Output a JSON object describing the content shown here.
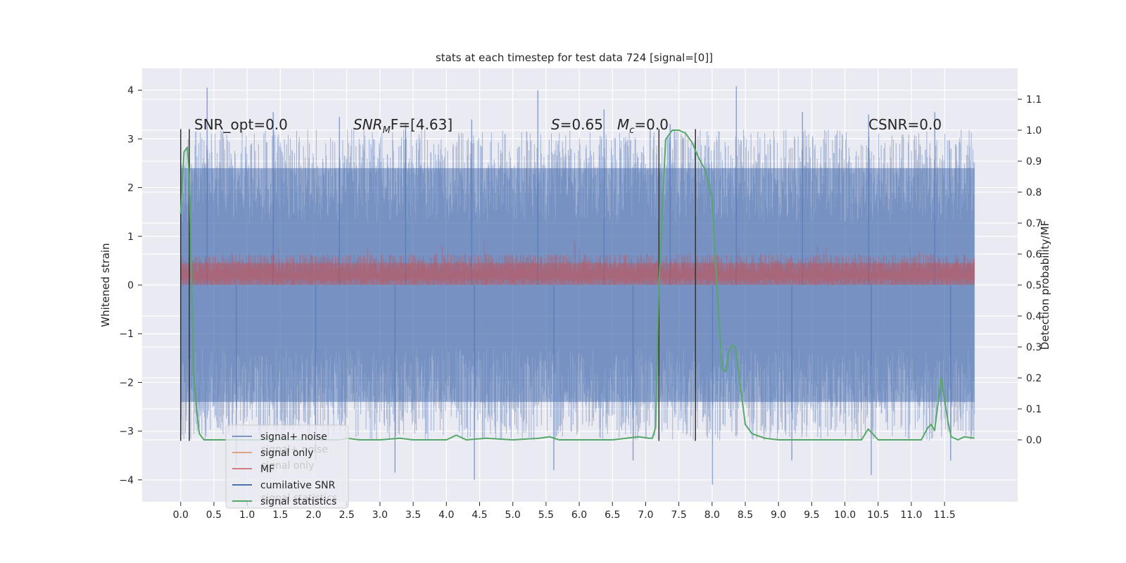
{
  "chart_data": {
    "type": "line",
    "title": "stats at each timestep for test data 724 [signal=[0]]",
    "xlabel": "",
    "ylabel_left": "Whitened strain",
    "ylabel_right": "Detection probability/MF",
    "xlim": [
      -0.58,
      12.6
    ],
    "ylim_left": [
      -4.45,
      4.45
    ],
    "ylim_right": [
      -0.2,
      1.2
    ],
    "grid": true,
    "x_ticks": [
      "0.0",
      "0.5",
      "1.0",
      "1.5",
      "2.0",
      "2.5",
      "3.0",
      "3.5",
      "4.0",
      "4.5",
      "5.0",
      "5.5",
      "6.0",
      "6.5",
      "7.0",
      "7.5",
      "8.0",
      "8.5",
      "9.0",
      "9.5",
      "10.0",
      "10.5",
      "11.0",
      "11.5"
    ],
    "y_ticks_left": [
      "−4",
      "−3",
      "−2",
      "−1",
      "0",
      "1",
      "2",
      "3",
      "4"
    ],
    "y_ticks_right": [
      "0.0",
      "0.1",
      "0.2",
      "0.3",
      "0.4",
      "0.5",
      "0.6",
      "0.7",
      "0.8",
      "0.9",
      "1.0",
      "1.1"
    ],
    "annotations": {
      "snr_opt": "SNR_opt=0.0",
      "snr_mf_math": "SNR",
      "snr_mf_sub": "M",
      "snr_mf_rest": "F=[4.63]",
      "s_math": "S",
      "s_value": "=0.65",
      "mc_math": "M",
      "mc_sub": "c",
      "mc_value": "=0.0",
      "csnr": "CSNR=0.0"
    },
    "legend": {
      "placement": "lower-left",
      "items": [
        {
          "label": "signal+ noise",
          "color": "#4c72b0"
        },
        {
          "label": "signal only",
          "color": "#dd8452"
        },
        {
          "label": "MF",
          "color": "#c44e52"
        },
        {
          "label": "cumilative SNR",
          "color": "#4c72b0"
        },
        {
          "label": "signal statistics",
          "color": "#55a868"
        }
      ],
      "ghost_labels": [
        "signal+ noise",
        "signal only",
        "signal statistics"
      ]
    },
    "series": [
      {
        "name": "signal+ noise",
        "axis": "left",
        "color": "#4c72b0",
        "x_range": [
          0.0,
          11.95
        ],
        "typical_range": [
          -2.4,
          2.4
        ],
        "peaks": [
          4.05,
          3.55,
          3.45,
          3.3,
          3.4,
          4.0,
          3.6,
          3.3,
          4.08,
          3.55,
          3.5,
          3.55
        ],
        "troughs": [
          -3.7,
          -3.6,
          -3.85,
          -4.0,
          -3.8,
          -3.6,
          -4.1,
          -3.6,
          -3.9,
          -3.6
        ]
      },
      {
        "name": "MF",
        "axis": "left",
        "color": "#c44e52",
        "x_range": [
          0.0,
          11.95
        ],
        "typical_range": [
          0.0,
          0.65
        ],
        "peak": 0.93
      },
      {
        "name": "signal statistics",
        "axis": "right",
        "color": "#55a868",
        "x": [
          0.0,
          0.05,
          0.1,
          0.13,
          0.16,
          0.2,
          0.24,
          0.28,
          0.35,
          0.5,
          1.0,
          2.0,
          2.3,
          2.4,
          2.5,
          2.7,
          3.0,
          3.3,
          3.5,
          4.0,
          4.15,
          4.3,
          4.6,
          5.0,
          5.4,
          5.55,
          5.7,
          6.0,
          6.5,
          6.9,
          7.05,
          7.1,
          7.15,
          7.2,
          7.3,
          7.4,
          7.5,
          7.6,
          7.7,
          7.8,
          7.9,
          8.0,
          8.1,
          8.15,
          8.2,
          8.25,
          8.3,
          8.35,
          8.4,
          8.5,
          8.6,
          8.8,
          9.0,
          9.5,
          10.0,
          10.25,
          10.35,
          10.5,
          11.0,
          11.15,
          11.25,
          11.3,
          11.35,
          11.45,
          11.55,
          11.6,
          11.7,
          11.8,
          11.95
        ],
        "values": [
          0.73,
          0.93,
          0.945,
          0.85,
          0.55,
          0.2,
          0.1,
          0.02,
          0.0,
          0.0,
          0.0,
          0.0,
          0.0,
          0.0,
          0.005,
          0.0,
          0.0,
          0.005,
          0.0,
          0.0,
          0.015,
          0.0,
          0.005,
          0.0,
          0.005,
          0.01,
          0.0,
          0.0,
          0.0,
          0.01,
          0.005,
          0.005,
          0.04,
          0.5,
          0.97,
          1.0,
          1.0,
          0.99,
          0.96,
          0.91,
          0.87,
          0.78,
          0.4,
          0.23,
          0.22,
          0.28,
          0.305,
          0.3,
          0.22,
          0.05,
          0.02,
          0.005,
          0.0,
          0.0,
          0.0,
          0.0,
          0.035,
          0.0,
          0.0,
          0.0,
          0.04,
          0.05,
          0.03,
          0.2,
          0.06,
          0.01,
          0.0,
          0.01,
          0.005
        ]
      }
    ],
    "vertical_markers": {
      "color": "#333333",
      "x": [
        0.0,
        0.13,
        7.2,
        7.75
      ],
      "ylim_left": [
        -3.2,
        3.2
      ]
    }
  },
  "colors": {
    "plot_background": "#eaeaf2",
    "grid": "#ffffff",
    "text": "#262626"
  }
}
